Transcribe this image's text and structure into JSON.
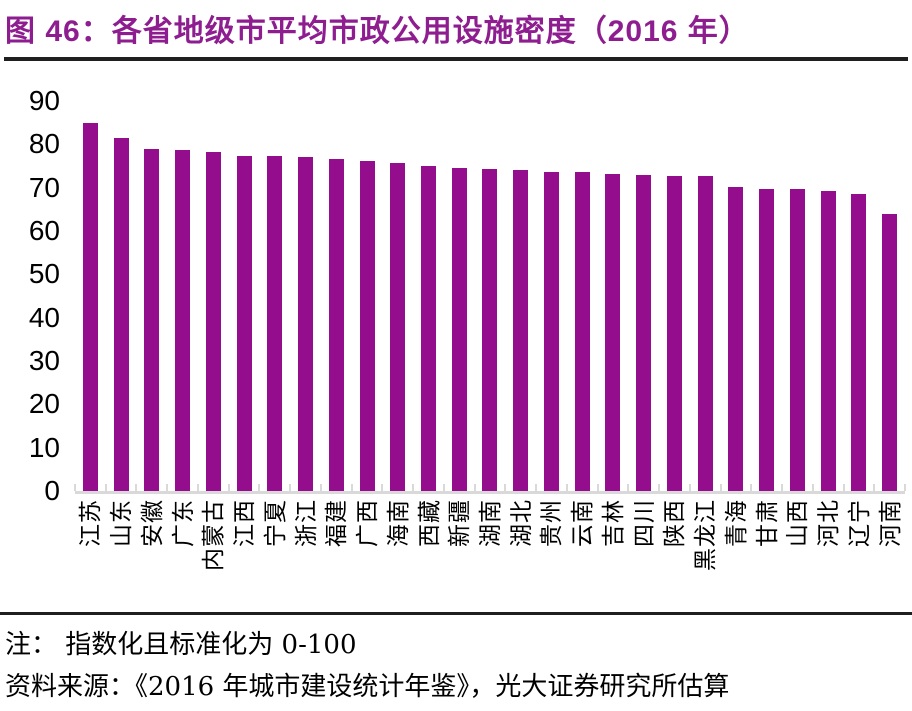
{
  "figure": {
    "title": "图 46：各省地级市平均市政公用设施密度（2016 年）",
    "note": "注：  指数化且标准化为 0-100",
    "source": "资料来源：《2016 年城市建设统计年鉴》，光大证券研究所估算"
  },
  "colors": {
    "bar": "#940D8C",
    "title": "#8E1E90",
    "axis": "#D9D9D9",
    "rule": "#1F1F1F",
    "text": "#000000"
  },
  "chart_data": {
    "type": "bar",
    "title": "各省地级市平均市政公用设施密度（2016 年）",
    "xlabel": "",
    "ylabel": "",
    "ylim": [
      0,
      90
    ],
    "yticks": [
      0,
      10,
      20,
      30,
      40,
      50,
      60,
      70,
      80,
      90
    ],
    "grid": false,
    "legend": "none",
    "bar_color": "#940D8C",
    "label_rotation": -90,
    "categories": [
      "江苏",
      "山东",
      "安徽",
      "广东",
      "内蒙古",
      "江西",
      "宁夏",
      "浙江",
      "福建",
      "广西",
      "海南",
      "西藏",
      "新疆",
      "湖南",
      "湖北",
      "贵州",
      "云南",
      "吉林",
      "四川",
      "陕西",
      "黑龙江",
      "青海",
      "甘肃",
      "山西",
      "河北",
      "辽宁",
      "河南"
    ],
    "values": [
      85,
      81.5,
      79,
      78.7,
      78.3,
      77.4,
      77.2,
      77,
      76.5,
      76.1,
      75.8,
      75,
      74.6,
      74.3,
      74,
      73.7,
      73.5,
      73.2,
      73,
      72.8,
      72.6,
      70.2,
      69.8,
      69.6,
      69.2,
      68.6,
      64
    ]
  }
}
